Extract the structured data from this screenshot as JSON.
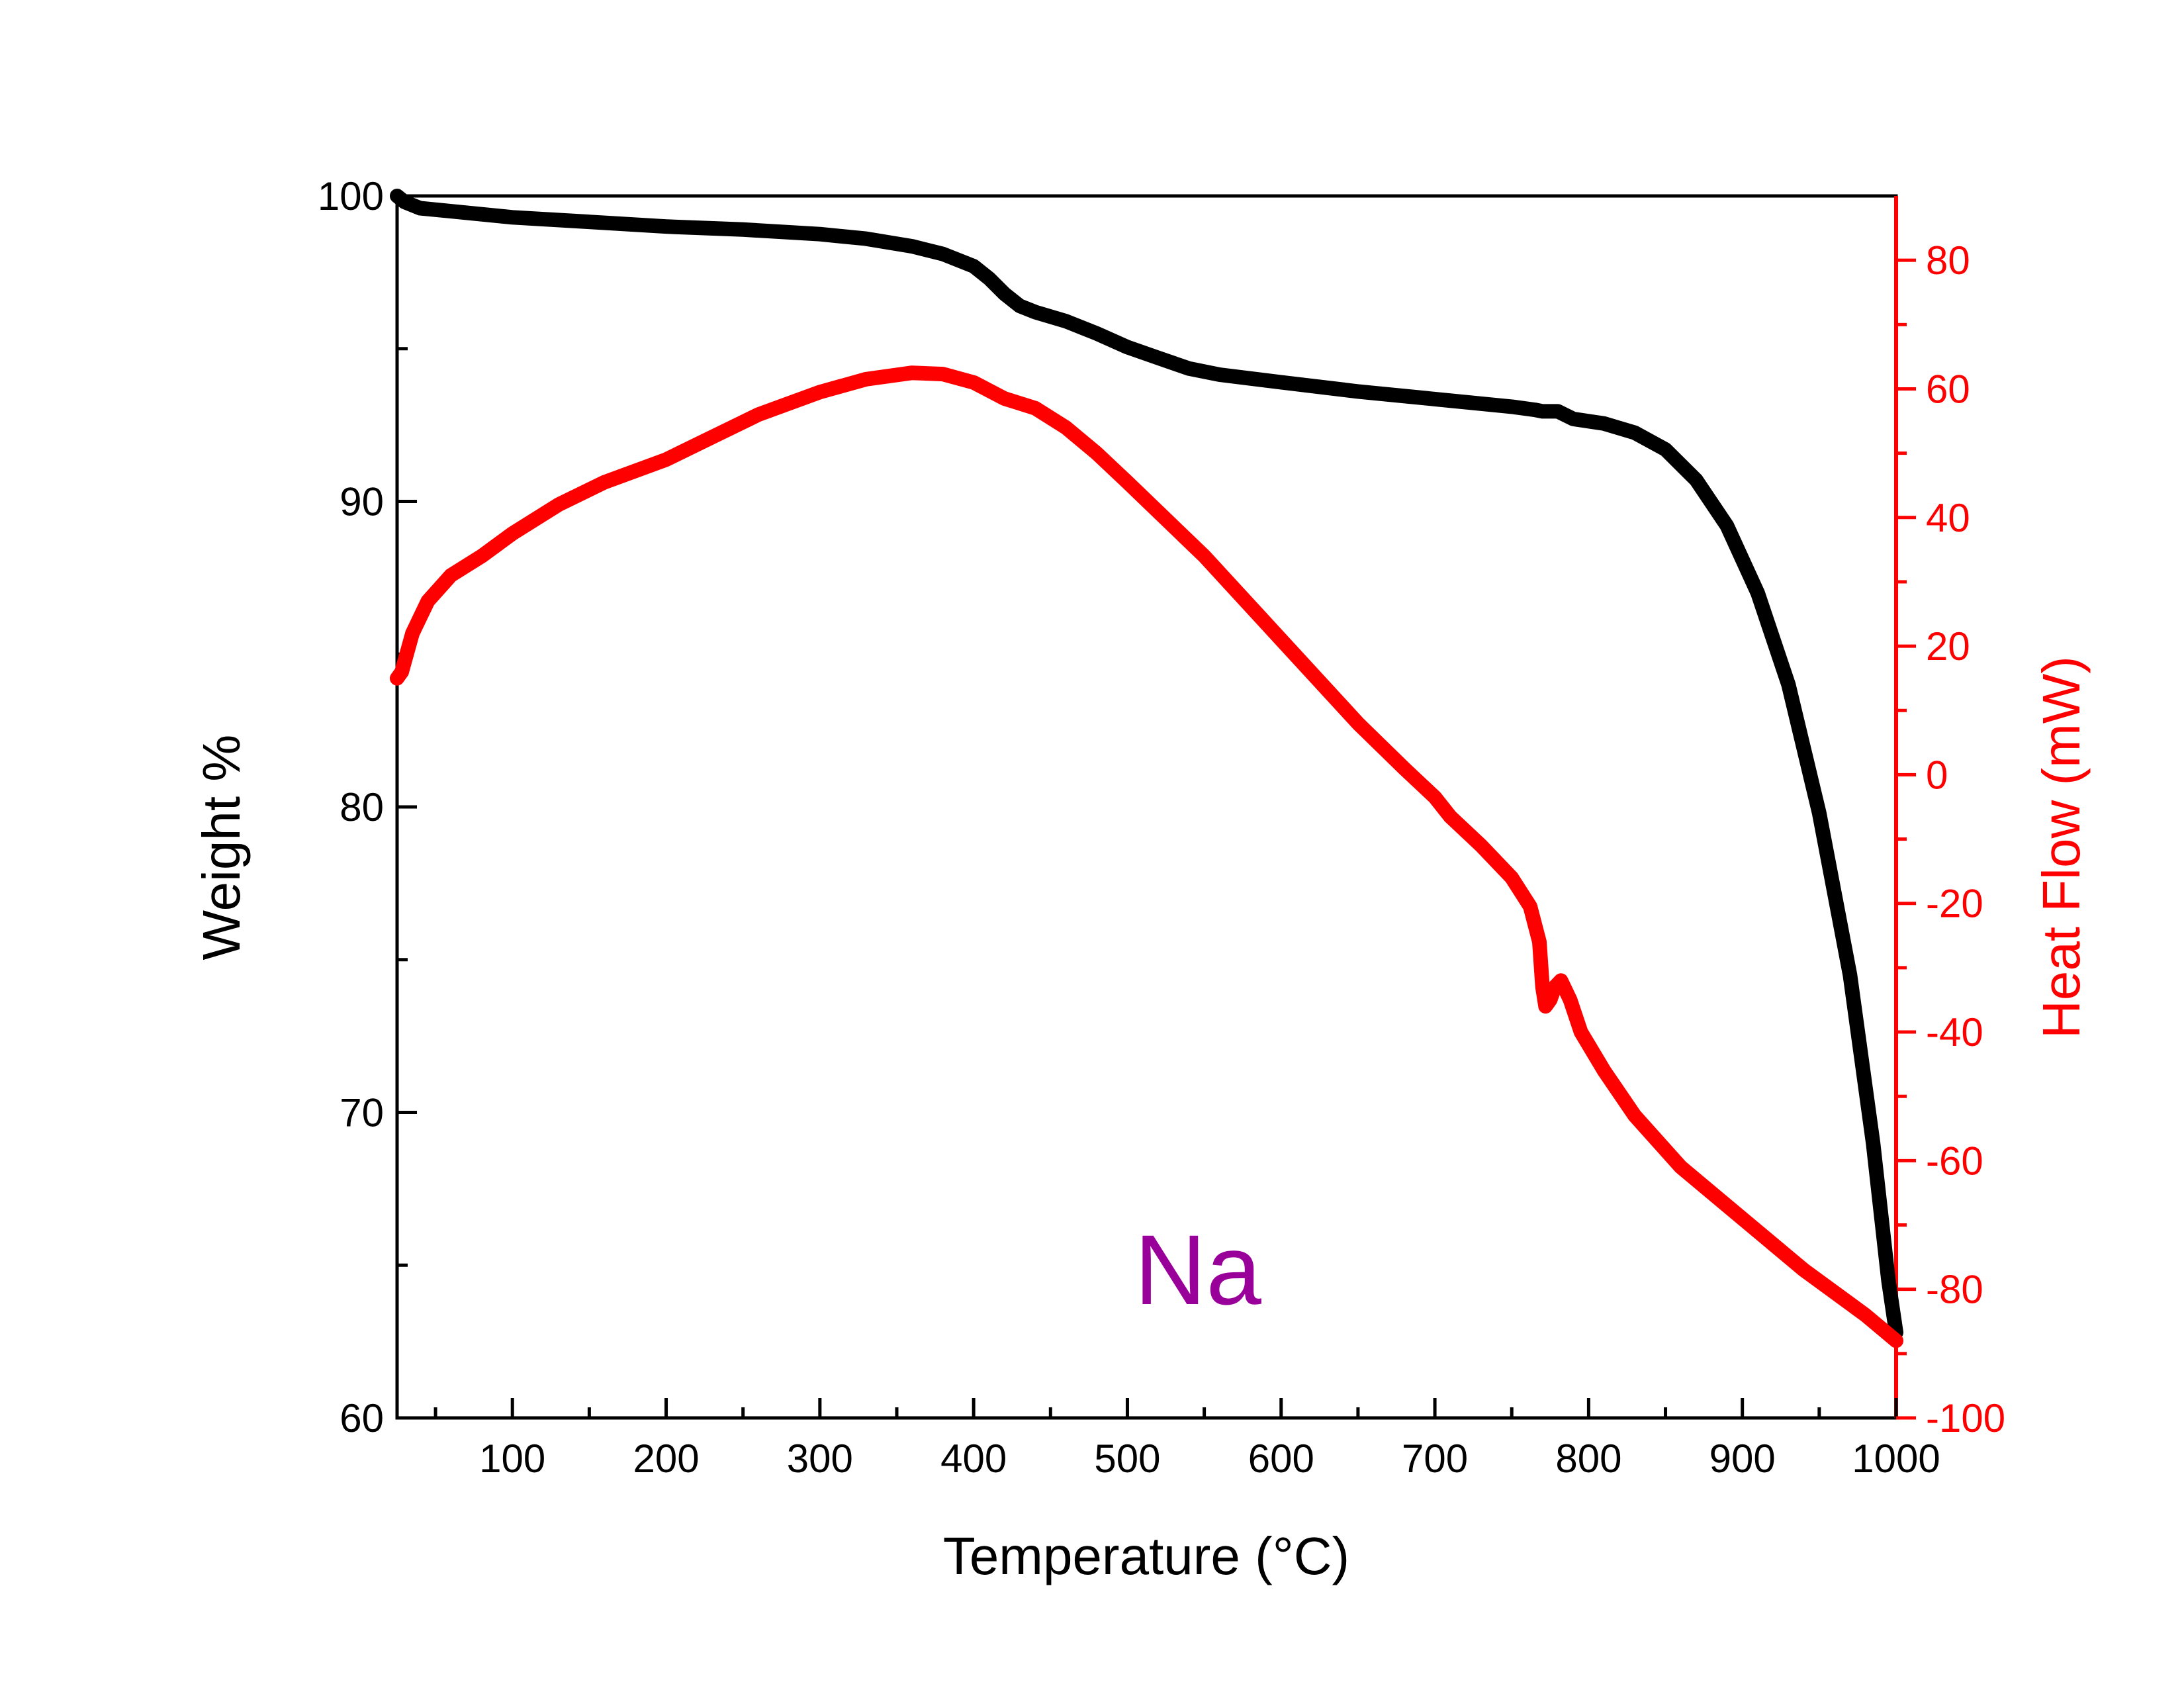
{
  "chart_data": {
    "type": "line",
    "annotation": "Na",
    "x_axis": {
      "label": "Temperature (°C)",
      "min": 25,
      "max": 1000,
      "ticks": [
        100,
        200,
        300,
        400,
        500,
        600,
        700,
        800,
        900,
        1000
      ],
      "tick_labels": [
        "100",
        "200",
        "300",
        "400",
        "500",
        "600",
        "700",
        "800",
        "900",
        "1000"
      ]
    },
    "y_left": {
      "label": "Weight %",
      "min": 60,
      "max": 100,
      "ticks": [
        60,
        70,
        80,
        90,
        100
      ],
      "tick_labels": [
        "60",
        "70",
        "80",
        "90",
        "100"
      ]
    },
    "y_right": {
      "label": "Heat Flow (mW)",
      "min": -100,
      "max": 90,
      "ticks": [
        -100,
        -80,
        -60,
        -40,
        -20,
        0,
        20,
        40,
        60,
        80
      ],
      "tick_labels": [
        "-100",
        "-80",
        "-60",
        "-40",
        "-20",
        "0",
        "20",
        "40",
        "60",
        "80"
      ]
    },
    "series": [
      {
        "axis": "left",
        "color": "#000000",
        "points": [
          [
            25,
            100
          ],
          [
            30,
            99.8
          ],
          [
            40,
            99.6
          ],
          [
            60,
            99.5
          ],
          [
            100,
            99.3
          ],
          [
            150,
            99.15
          ],
          [
            200,
            99.0
          ],
          [
            250,
            98.9
          ],
          [
            300,
            98.75
          ],
          [
            330,
            98.6
          ],
          [
            360,
            98.35
          ],
          [
            380,
            98.1
          ],
          [
            400,
            97.7
          ],
          [
            410,
            97.3
          ],
          [
            420,
            96.8
          ],
          [
            430,
            96.4
          ],
          [
            440,
            96.2
          ],
          [
            460,
            95.9
          ],
          [
            480,
            95.5
          ],
          [
            500,
            95.05
          ],
          [
            520,
            94.7
          ],
          [
            540,
            94.35
          ],
          [
            560,
            94.15
          ],
          [
            600,
            93.9
          ],
          [
            650,
            93.6
          ],
          [
            700,
            93.35
          ],
          [
            750,
            93.1
          ],
          [
            765,
            93.0
          ],
          [
            770,
            92.95
          ],
          [
            780,
            92.95
          ],
          [
            790,
            92.7
          ],
          [
            810,
            92.55
          ],
          [
            830,
            92.25
          ],
          [
            850,
            91.7
          ],
          [
            870,
            90.7
          ],
          [
            890,
            89.2
          ],
          [
            910,
            87.0
          ],
          [
            930,
            84.0
          ],
          [
            950,
            79.8
          ],
          [
            970,
            74.5
          ],
          [
            985,
            69.0
          ],
          [
            995,
            64.5
          ],
          [
            1000,
            62.8
          ]
        ]
      },
      {
        "axis": "right",
        "color": "#ff0000",
        "points": [
          [
            25,
            15
          ],
          [
            28,
            16
          ],
          [
            35,
            22
          ],
          [
            45,
            27
          ],
          [
            60,
            31
          ],
          [
            80,
            34
          ],
          [
            100,
            37.5
          ],
          [
            130,
            42
          ],
          [
            160,
            45.5
          ],
          [
            200,
            49
          ],
          [
            230,
            52.5
          ],
          [
            260,
            56
          ],
          [
            300,
            59.5
          ],
          [
            330,
            61.5
          ],
          [
            360,
            62.5
          ],
          [
            380,
            62.3
          ],
          [
            400,
            61
          ],
          [
            420,
            58.5
          ],
          [
            440,
            57
          ],
          [
            460,
            54
          ],
          [
            480,
            50
          ],
          [
            500,
            45.5
          ],
          [
            550,
            34
          ],
          [
            600,
            21
          ],
          [
            650,
            8
          ],
          [
            680,
            1
          ],
          [
            700,
            -3.5
          ],
          [
            710,
            -6.5
          ],
          [
            730,
            -11
          ],
          [
            750,
            -16
          ],
          [
            762,
            -20.5
          ],
          [
            768,
            -26
          ],
          [
            770,
            -33
          ],
          [
            772,
            -36
          ],
          [
            775,
            -35
          ],
          [
            778,
            -33
          ],
          [
            782,
            -32
          ],
          [
            788,
            -35
          ],
          [
            795,
            -40
          ],
          [
            810,
            -46
          ],
          [
            830,
            -53
          ],
          [
            860,
            -61
          ],
          [
            900,
            -69
          ],
          [
            940,
            -77
          ],
          [
            980,
            -84
          ],
          [
            1000,
            -88
          ]
        ]
      }
    ]
  }
}
